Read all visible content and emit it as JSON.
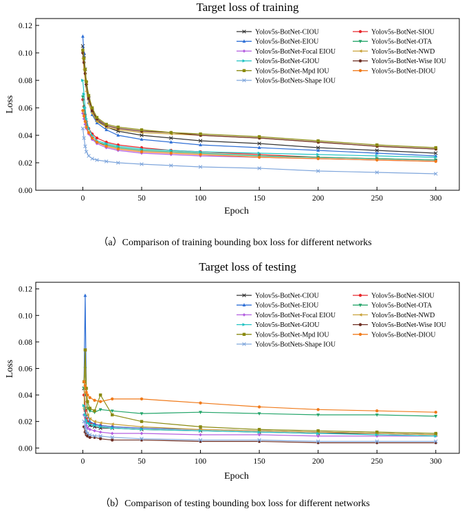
{
  "chart_data": [
    {
      "type": "line",
      "title": "Target loss of training",
      "caption": "（a）Comparison of training bounding box loss for different networks",
      "xlabel": "Epoch",
      "ylabel": "Loss",
      "xlim": [
        -40,
        320
      ],
      "ylim": [
        0.0,
        0.125
      ],
      "xticks": [
        0,
        50,
        100,
        150,
        200,
        250,
        300
      ],
      "yticks": [
        0.0,
        0.02,
        0.04,
        0.06,
        0.08,
        0.1,
        0.12
      ],
      "ytick_labels": [
        "0.00",
        "0.02",
        "0.04",
        "0.06",
        "0.08",
        "0.10",
        "0.12"
      ],
      "legend_position": "top-right",
      "x": [
        0,
        1,
        2,
        3,
        5,
        8,
        12,
        20,
        30,
        50,
        75,
        100,
        150,
        200,
        250,
        300
      ],
      "series": [
        {
          "name": "Yolov5s-BotNet-CIOU",
          "color": "#333333",
          "marker": "x",
          "values": [
            0.105,
            0.098,
            0.088,
            0.078,
            0.067,
            0.058,
            0.051,
            0.046,
            0.043,
            0.04,
            0.038,
            0.036,
            0.034,
            0.031,
            0.029,
            0.027
          ]
        },
        {
          "name": "Yolov5s-BotNet-SIOU",
          "color": "#e8262a",
          "marker": "o",
          "values": [
            0.066,
            0.061,
            0.055,
            0.05,
            0.045,
            0.041,
            0.038,
            0.035,
            0.033,
            0.031,
            0.029,
            0.028,
            0.026,
            0.024,
            0.023,
            0.022
          ]
        },
        {
          "name": "Yolov5s-BotNet-EIOU",
          "color": "#2e6fd6",
          "marker": "^",
          "values": [
            0.112,
            0.1,
            0.088,
            0.076,
            0.064,
            0.055,
            0.049,
            0.044,
            0.04,
            0.037,
            0.035,
            0.033,
            0.031,
            0.029,
            0.027,
            0.025
          ]
        },
        {
          "name": "Yolov5s-BotNet-OTA",
          "color": "#24a56a",
          "marker": "v",
          "values": [
            0.068,
            0.06,
            0.053,
            0.047,
            0.042,
            0.038,
            0.035,
            0.033,
            0.031,
            0.029,
            0.028,
            0.027,
            0.025,
            0.024,
            0.023,
            0.022
          ]
        },
        {
          "name": "Yolov5s-BotNet-Focal EIOU",
          "color": "#b45fe0",
          "marker": "d",
          "values": [
            0.056,
            0.052,
            0.048,
            0.045,
            0.041,
            0.037,
            0.034,
            0.031,
            0.029,
            0.027,
            0.026,
            0.025,
            0.024,
            0.023,
            0.022,
            0.021
          ]
        },
        {
          "name": "Yolov5s-BotNet-NWD",
          "color": "#c9a23a",
          "marker": "<",
          "values": [
            0.096,
            0.088,
            0.08,
            0.072,
            0.063,
            0.056,
            0.05,
            0.046,
            0.044,
            0.042,
            0.041,
            0.04,
            0.038,
            0.035,
            0.032,
            0.03
          ]
        },
        {
          "name": "Yolov5s-BotNet-GIOU",
          "color": "#22c3c3",
          "marker": ">",
          "values": [
            0.08,
            0.07,
            0.06,
            0.052,
            0.045,
            0.04,
            0.036,
            0.034,
            0.032,
            0.03,
            0.029,
            0.028,
            0.027,
            0.026,
            0.025,
            0.024
          ]
        },
        {
          "name": "Yolov5s-BotNet-Wise IOU",
          "color": "#6b2a1f",
          "marker": "h",
          "values": [
            0.1,
            0.093,
            0.085,
            0.077,
            0.067,
            0.058,
            0.052,
            0.047,
            0.045,
            0.043,
            0.042,
            0.04,
            0.038,
            0.035,
            0.032,
            0.03
          ]
        },
        {
          "name": "Yolov5s-BotNet-Mpd IOU",
          "color": "#8a8a10",
          "marker": "s",
          "values": [
            0.102,
            0.096,
            0.088,
            0.079,
            0.069,
            0.06,
            0.053,
            0.048,
            0.046,
            0.044,
            0.042,
            0.041,
            0.039,
            0.036,
            0.033,
            0.031
          ]
        },
        {
          "name": "Yolov5s-BotNet-DIOU",
          "color": "#f07a1a",
          "marker": "o",
          "values": [
            0.058,
            0.054,
            0.05,
            0.046,
            0.042,
            0.038,
            0.035,
            0.032,
            0.03,
            0.028,
            0.027,
            0.026,
            0.024,
            0.023,
            0.022,
            0.021
          ]
        },
        {
          "name": "Yolov5s-BotNets-Shape IOU",
          "color": "#7fa6dc",
          "marker": "x",
          "values": [
            0.045,
            0.038,
            0.032,
            0.028,
            0.025,
            0.023,
            0.022,
            0.021,
            0.02,
            0.019,
            0.018,
            0.017,
            0.016,
            0.014,
            0.013,
            0.012
          ]
        }
      ]
    },
    {
      "type": "line",
      "title": "Target loss of testing",
      "caption": "（b）Comparison of testing bounding box loss for different networks",
      "xlabel": "Epoch",
      "ylabel": "Loss",
      "xlim": [
        -40,
        320
      ],
      "ylim": [
        -0.004,
        0.125
      ],
      "xticks": [
        0,
        50,
        100,
        150,
        200,
        250,
        300
      ],
      "yticks": [
        0.0,
        0.02,
        0.04,
        0.06,
        0.08,
        0.1,
        0.12
      ],
      "ytick_labels": [
        "0.00",
        "0.02",
        "0.04",
        "0.06",
        "0.08",
        "0.10",
        "0.12"
      ],
      "legend_position": "top-right",
      "x": [
        1,
        2,
        3,
        4,
        6,
        10,
        15,
        25,
        50,
        100,
        150,
        200,
        250,
        300
      ],
      "series": [
        {
          "name": "Yolov5s-BotNet-CIOU",
          "color": "#333333",
          "marker": "x",
          "values": [
            0.045,
            0.03,
            0.022,
            0.019,
            0.017,
            0.016,
            0.015,
            0.015,
            0.014,
            0.013,
            0.012,
            0.011,
            0.011,
            0.01
          ]
        },
        {
          "name": "Yolov5s-BotNet-SIOU",
          "color": "#e8262a",
          "marker": "o",
          "values": [
            0.04,
            0.028,
            0.022,
            0.02,
            0.019,
            0.018,
            0.017,
            0.016,
            0.015,
            0.014,
            0.013,
            0.012,
            0.011,
            0.01
          ]
        },
        {
          "name": "Yolov5s-BotNet-EIOU",
          "color": "#2e6fd6",
          "marker": "^",
          "values": [
            0.05,
            0.115,
            0.04,
            0.025,
            0.02,
            0.018,
            0.017,
            0.016,
            0.015,
            0.014,
            0.013,
            0.012,
            0.011,
            0.01
          ]
        },
        {
          "name": "Yolov5s-BotNet-OTA",
          "color": "#24a56a",
          "marker": "v",
          "values": [
            0.045,
            0.06,
            0.04,
            0.03,
            0.028,
            0.027,
            0.029,
            0.028,
            0.026,
            0.027,
            0.026,
            0.025,
            0.025,
            0.024
          ]
        },
        {
          "name": "Yolov5s-BotNet-Focal EIOU",
          "color": "#b45fe0",
          "marker": "d",
          "values": [
            0.025,
            0.02,
            0.017,
            0.015,
            0.014,
            0.013,
            0.012,
            0.011,
            0.011,
            0.01,
            0.01,
            0.009,
            0.009,
            0.009
          ]
        },
        {
          "name": "Yolov5s-BotNet-NWD",
          "color": "#c9a23a",
          "marker": "<",
          "values": [
            0.03,
            0.074,
            0.035,
            0.025,
            0.022,
            0.02,
            0.019,
            0.018,
            0.016,
            0.014,
            0.013,
            0.012,
            0.011,
            0.01
          ]
        },
        {
          "name": "Yolov5s-BotNet-GIOU",
          "color": "#22c3c3",
          "marker": ">",
          "values": [
            0.032,
            0.025,
            0.021,
            0.019,
            0.018,
            0.017,
            0.016,
            0.015,
            0.014,
            0.013,
            0.012,
            0.011,
            0.01,
            0.009
          ]
        },
        {
          "name": "Yolov5s-BotNet-Wise IOU",
          "color": "#6b2a1f",
          "marker": "h",
          "values": [
            0.016,
            0.012,
            0.01,
            0.009,
            0.008,
            0.008,
            0.007,
            0.006,
            0.006,
            0.005,
            0.005,
            0.004,
            0.004,
            0.004
          ]
        },
        {
          "name": "Yolov5s-BotNet-Mpd IOU",
          "color": "#8a8a10",
          "marker": "s",
          "values": [
            0.05,
            0.074,
            0.045,
            0.035,
            0.03,
            0.028,
            0.04,
            0.025,
            0.02,
            0.016,
            0.014,
            0.013,
            0.012,
            0.011
          ]
        },
        {
          "name": "Yolov5s-BotNet-DIOU",
          "color": "#f07a1a",
          "marker": "o",
          "values": [
            0.05,
            0.047,
            0.042,
            0.04,
            0.038,
            0.036,
            0.035,
            0.037,
            0.037,
            0.034,
            0.031,
            0.029,
            0.028,
            0.027
          ]
        },
        {
          "name": "Yolov5s-BotNets-Shape IOU",
          "color": "#7fa6dc",
          "marker": "x",
          "values": [
            0.02,
            0.016,
            0.013,
            0.011,
            0.01,
            0.009,
            0.009,
            0.008,
            0.007,
            0.006,
            0.006,
            0.005,
            0.005,
            0.005
          ]
        }
      ]
    }
  ]
}
